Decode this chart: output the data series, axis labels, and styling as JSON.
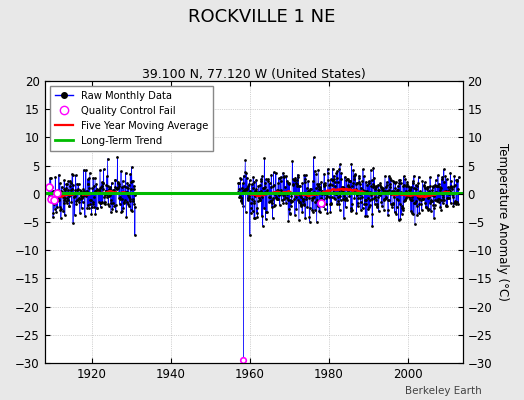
{
  "title": "ROCKVILLE 1 NE",
  "subtitle": "39.100 N, 77.120 W (United States)",
  "ylabel": "Temperature Anomaly (°C)",
  "watermark": "Berkeley Earth",
  "xlim": [
    1908,
    2014
  ],
  "ylim": [
    -30,
    20
  ],
  "yticks": [
    -30,
    -25,
    -20,
    -15,
    -10,
    -5,
    0,
    5,
    10,
    15,
    20
  ],
  "xticks": [
    1920,
    1940,
    1960,
    1980,
    2000
  ],
  "early_start": 1909,
  "early_end": 1930,
  "main_start": 1957,
  "main_end": 2012,
  "outlier_year": 1958.25,
  "outlier_value": -29.5,
  "qc_early_year": 1910.5,
  "qc_early_value": 3.5,
  "qc_mid_year": 1978.5,
  "qc_mid_value": -4.2,
  "raw_color": "#0000FF",
  "raw_marker_color": "#000000",
  "qc_color": "#FF00FF",
  "moving_avg_color": "#FF0000",
  "trend_color": "#00BB00",
  "background_color": "#E8E8E8",
  "plot_background": "#FFFFFF",
  "grid_color": "#AAAAAA",
  "title_fontsize": 13,
  "subtitle_fontsize": 9,
  "trend_slope": 0.0,
  "trend_intercept": 0.15,
  "noise_std": 2.0,
  "ma_noise_std": 0.6
}
